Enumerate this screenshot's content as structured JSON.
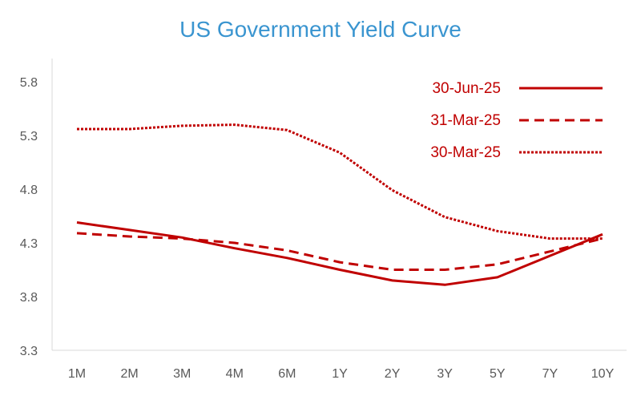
{
  "chart_data": {
    "type": "line",
    "title": "US Government Yield Curve",
    "xlabel": "",
    "ylabel": "",
    "categories": [
      "1M",
      "2M",
      "3M",
      "4M",
      "6M",
      "1Y",
      "2Y",
      "3Y",
      "5Y",
      "7Y",
      "10Y"
    ],
    "yticks": [
      "3.3",
      "3.8",
      "4.3",
      "4.8",
      "5.3",
      "5.8"
    ],
    "ylim": [
      3.3,
      5.8
    ],
    "grid": false,
    "legend_position": "top-right",
    "series": [
      {
        "name": "30-Jun-25",
        "style": "solid",
        "color": "#c00000",
        "values": [
          4.49,
          4.42,
          4.35,
          4.25,
          4.16,
          4.05,
          3.95,
          3.91,
          3.98,
          4.18,
          4.38
        ]
      },
      {
        "name": "31-Mar-25",
        "style": "dashed",
        "color": "#c00000",
        "values": [
          4.39,
          4.36,
          4.34,
          4.3,
          4.23,
          4.12,
          4.05,
          4.05,
          4.1,
          4.22,
          4.34
        ]
      },
      {
        "name": "30-Mar-25",
        "style": "dotted",
        "color": "#c00000",
        "values": [
          5.36,
          5.36,
          5.39,
          5.4,
          5.35,
          5.14,
          4.79,
          4.54,
          4.41,
          4.34,
          4.34
        ]
      }
    ]
  }
}
